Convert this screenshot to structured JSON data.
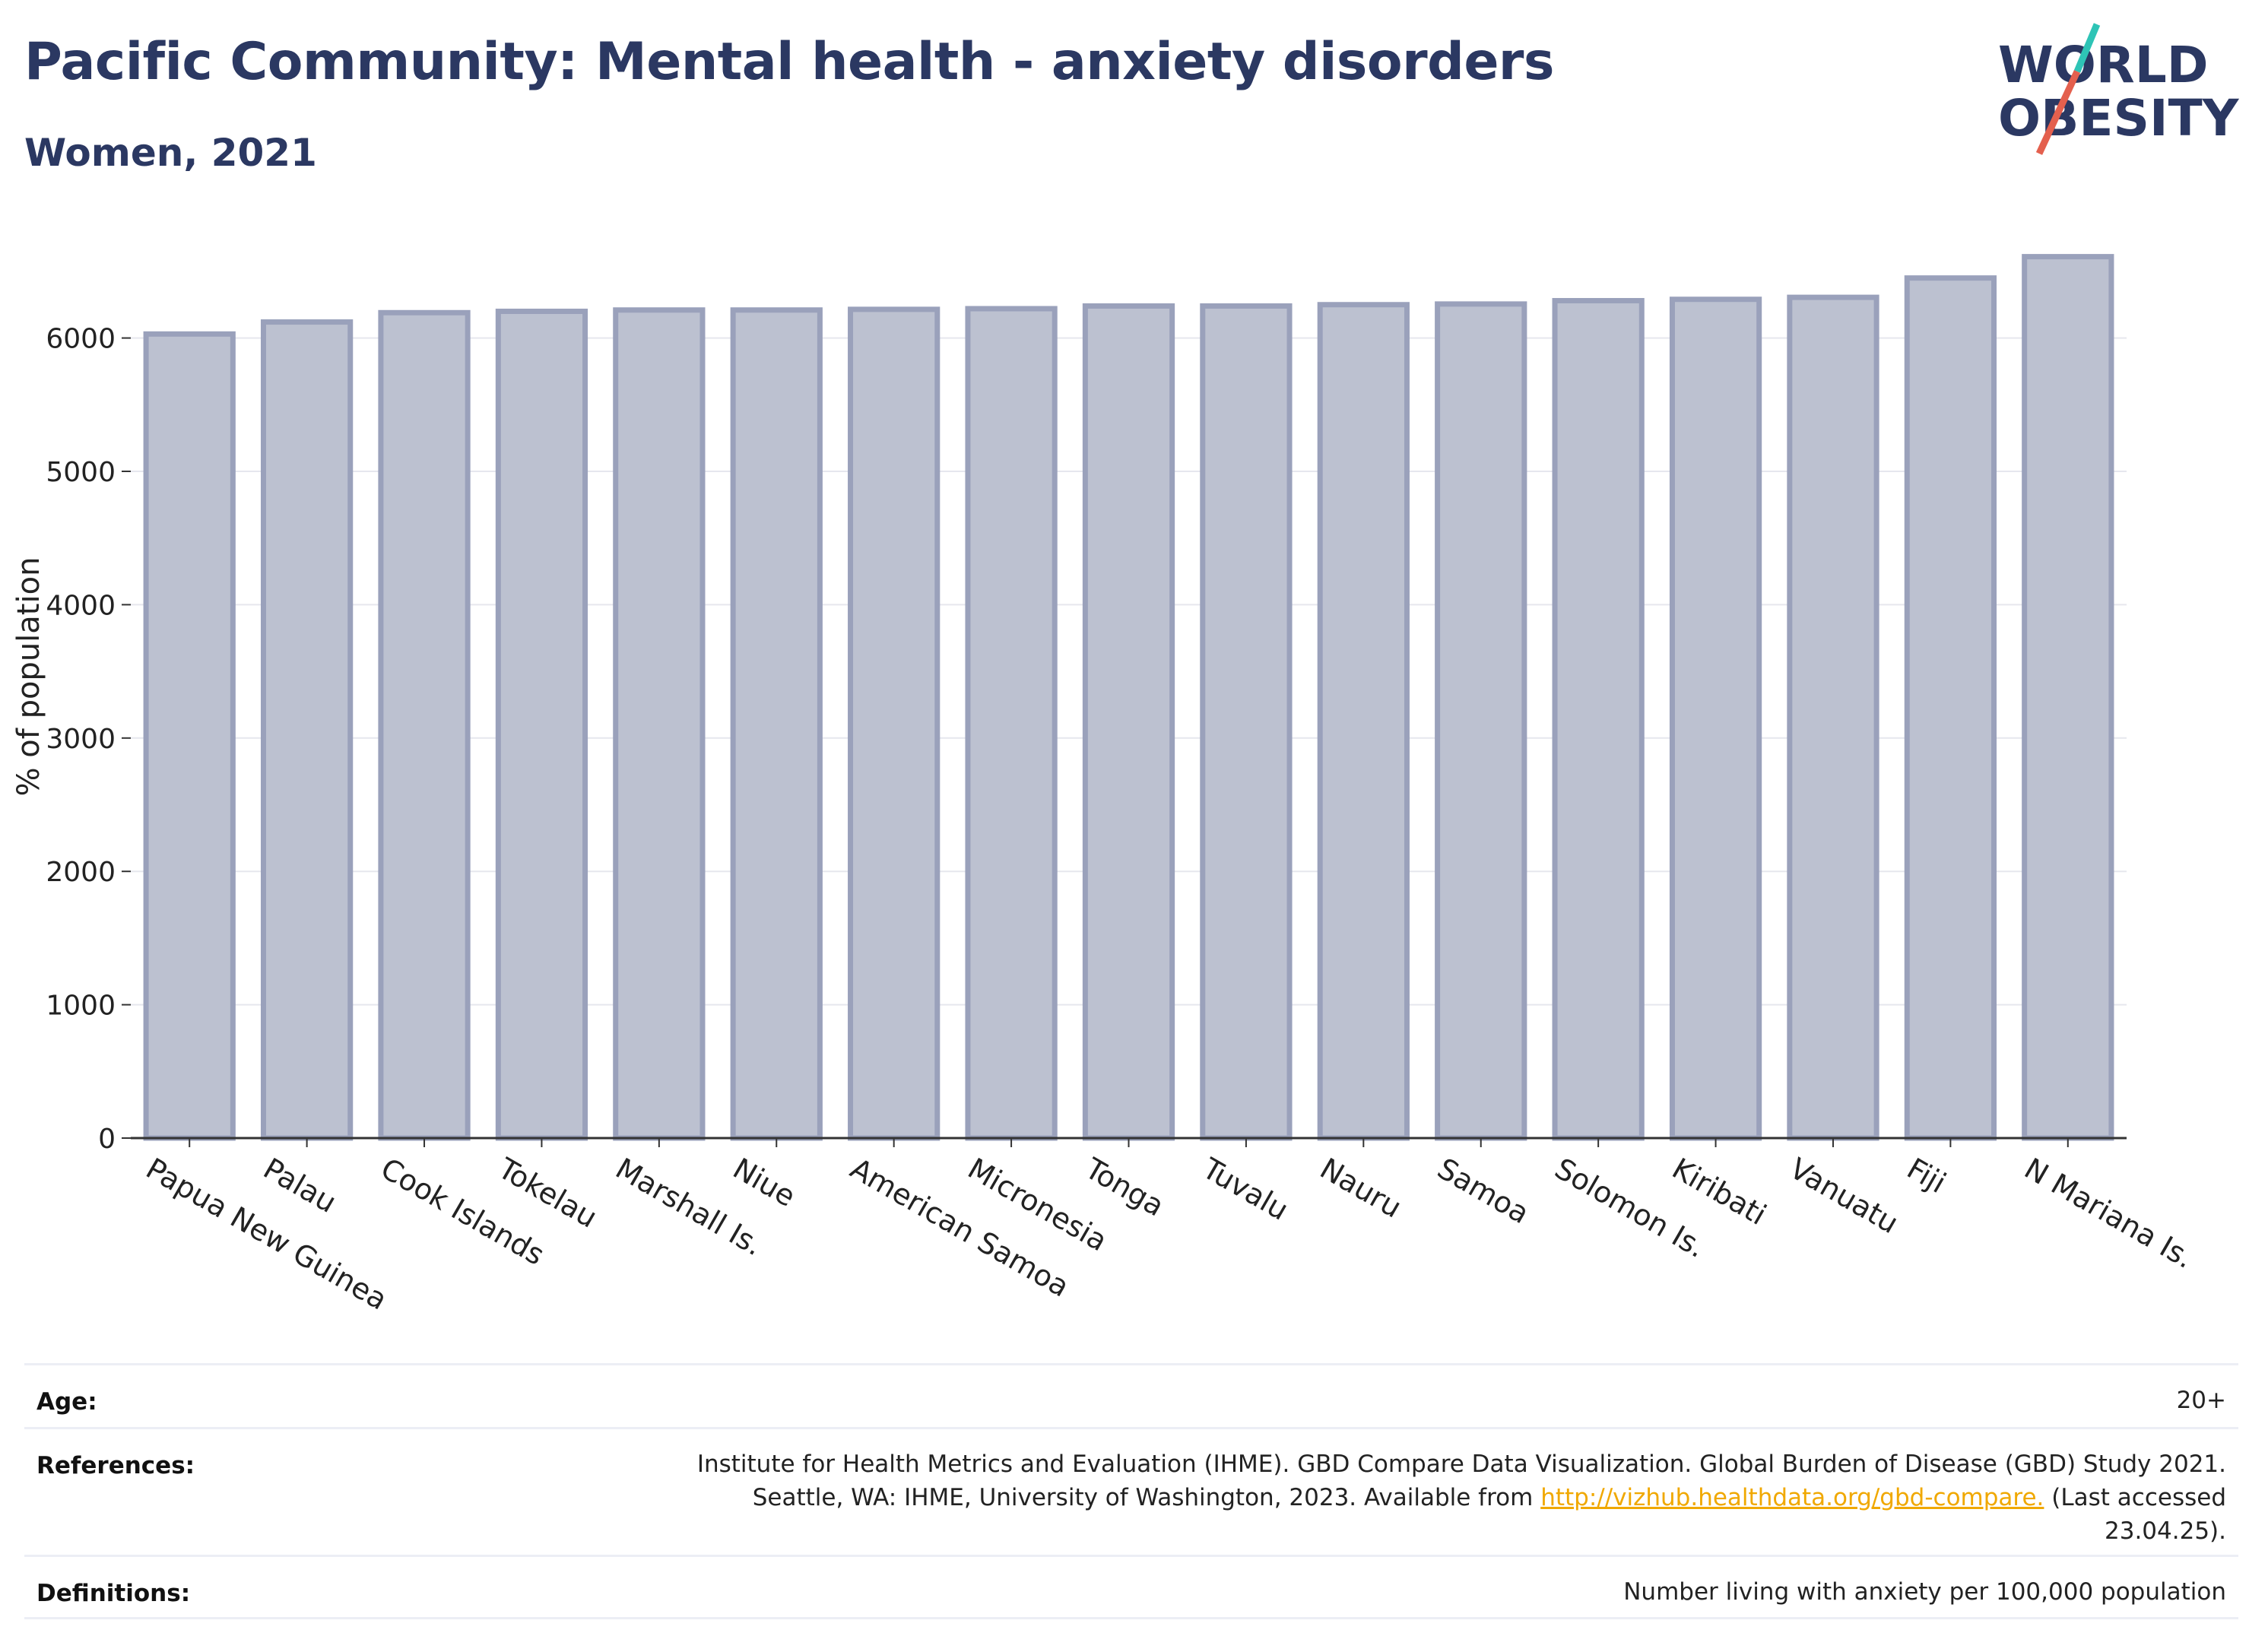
{
  "header": {
    "title": "Pacific Community: Mental health - anxiety disorders",
    "subtitle": "Women, 2021"
  },
  "logo": {
    "line1": "WORLD",
    "line2": "OBESITY",
    "colors": {
      "text": "#2b3862",
      "slash_teal": "#2ec4b6",
      "slash_red": "#e4604e"
    }
  },
  "chart_data": {
    "type": "bar",
    "title": "Pacific Community: Mental health - anxiety disorders",
    "subtitle": "Women, 2021",
    "xlabel": "",
    "ylabel": "% of population",
    "ylim": [
      0,
      6900
    ],
    "yticks": [
      0,
      1000,
      2000,
      3000,
      4000,
      5000,
      6000
    ],
    "grid": true,
    "categories": [
      "Papua New Guinea",
      "Palau",
      "Cook Islands",
      "Tokelau",
      "Marshall Is.",
      "Niue",
      "American Samoa",
      "Micronesia",
      "Tonga",
      "Tuvalu",
      "Nauru",
      "Samoa",
      "Solomon Is.",
      "Kiribati",
      "Vanuatu",
      "Fiji",
      "N Mariana Is."
    ],
    "values": [
      6030,
      6120,
      6190,
      6200,
      6210,
      6210,
      6215,
      6220,
      6240,
      6240,
      6250,
      6255,
      6280,
      6290,
      6305,
      6450,
      6610
    ],
    "colors": {
      "bar_fill": "#bcc1d0",
      "bar_stroke": "#9aa1bb",
      "grid": "#e6e7ee",
      "axis": "#333333"
    }
  },
  "meta": {
    "age_label": "Age:",
    "age_value": "20+",
    "references_label": "References:",
    "references_line1": "Institute for Health Metrics and Evaluation (IHME). GBD Compare Data Visualization. Global Burden of Disease (GBD) Study 2021.",
    "references_line2_pre": "Seattle, WA: IHME, University of Washington, 2023. Available from ",
    "references_link": "http://vizhub.healthdata.org/gbd-compare.",
    "references_line2_post": " (Last accessed",
    "references_line3": "23.04.25).",
    "definitions_label": "Definitions:",
    "definitions_value": "Number living with anxiety per 100,000 population"
  }
}
